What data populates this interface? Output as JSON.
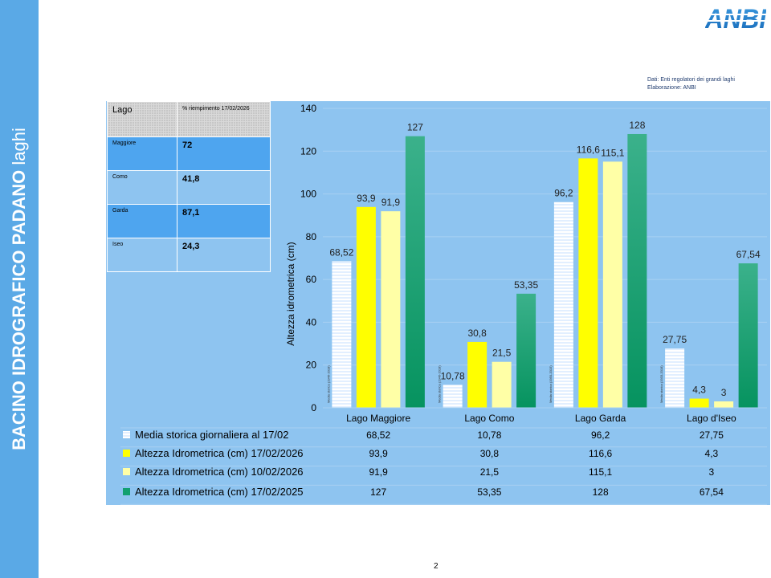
{
  "slide": {
    "sidebar_title_bold": "BACINO IDROGRAFICO PADANO",
    "sidebar_title_rest": " laghi",
    "logo_text": "ANBI",
    "source_line1": "Dati: Enti regolatori dei grandi laghi",
    "source_line2": "Elaborazione: ANBI",
    "page_number": "2"
  },
  "fill_table": {
    "header": {
      "lake": "Lago",
      "fill": "% riempimento 17/02/2026"
    },
    "rows": [
      {
        "lake": "Maggiore",
        "fill": "72"
      },
      {
        "lake": "Como",
        "fill": "41,8"
      },
      {
        "lake": "Garda",
        "fill": "87,1"
      },
      {
        "lake": "Iseo",
        "fill": "24,3"
      }
    ]
  },
  "chart_data": {
    "type": "bar",
    "title": "",
    "ylabel": "Altezza idrometrica (cm)",
    "xlabel": "",
    "ylim": [
      0,
      140
    ],
    "yticks": [
      0,
      20,
      40,
      60,
      80,
      100,
      120,
      140
    ],
    "categories": [
      "Lago Maggiore",
      "Lago Como",
      "Lago Garda",
      "Lago d'Iseo"
    ],
    "series": [
      {
        "name": "Media storica  giornaliera al 17/02",
        "values": [
          68.52,
          10.78,
          96.2,
          27.75
        ],
        "labels": [
          "68,52",
          "10,78",
          "96,2",
          "27,75"
        ],
        "color": "#ffffff"
      },
      {
        "name": "Altezza Idrometrica (cm) 17/02/2026",
        "values": [
          93.9,
          30.8,
          116.6,
          4.3
        ],
        "labels": [
          "93,9",
          "30,8",
          "116,6",
          "4,3"
        ],
        "color": "#ffff00"
      },
      {
        "name": "Altezza Idrometrica (cm) 10/02/2026",
        "values": [
          91.9,
          21.5,
          115.1,
          3
        ],
        "labels": [
          "91,9",
          "21,5",
          "115,1",
          "3"
        ],
        "color": "#ffffa6"
      },
      {
        "name": "Altezza Idrometrica (cm) 17/02/2025",
        "values": [
          127,
          53.35,
          128,
          67.54
        ],
        "labels": [
          "127",
          "53,35",
          "128",
          "67,54"
        ],
        "color": "#12a070"
      }
    ],
    "bar_notes": [
      "Media storica (1946-2018)",
      "Media storica (1946-2018)",
      "Media storica (1950-2015)",
      "Media storica (1933-2018)"
    ],
    "grid": true,
    "legend": "bottom data table"
  }
}
